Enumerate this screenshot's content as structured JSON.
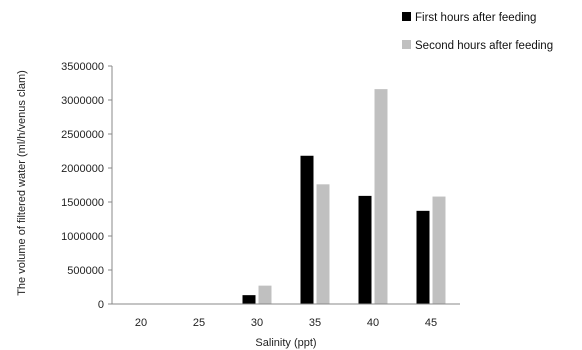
{
  "chart_data": {
    "type": "bar",
    "xlabel": "Salinity (ppt)",
    "ylabel": "The volume of filtered water (ml/h/venus clam)",
    "categories": [
      "20",
      "25",
      "30",
      "35",
      "40",
      "45"
    ],
    "series": [
      {
        "name": "First hours after feeding",
        "color": "#000000",
        "values": [
          0,
          0,
          130000,
          2180000,
          1590000,
          1370000
        ]
      },
      {
        "name": "Second hours after feeding",
        "color": "#c0c0c0",
        "values": [
          0,
          0,
          270000,
          1760000,
          3160000,
          1580000
        ]
      }
    ],
    "ylim": [
      0,
      3500000
    ],
    "yticks": [
      "0",
      "500000",
      "1000000",
      "1500000",
      "2000000",
      "2500000",
      "3000000",
      "3500000"
    ],
    "grid": false,
    "legend_position": "top-right"
  }
}
